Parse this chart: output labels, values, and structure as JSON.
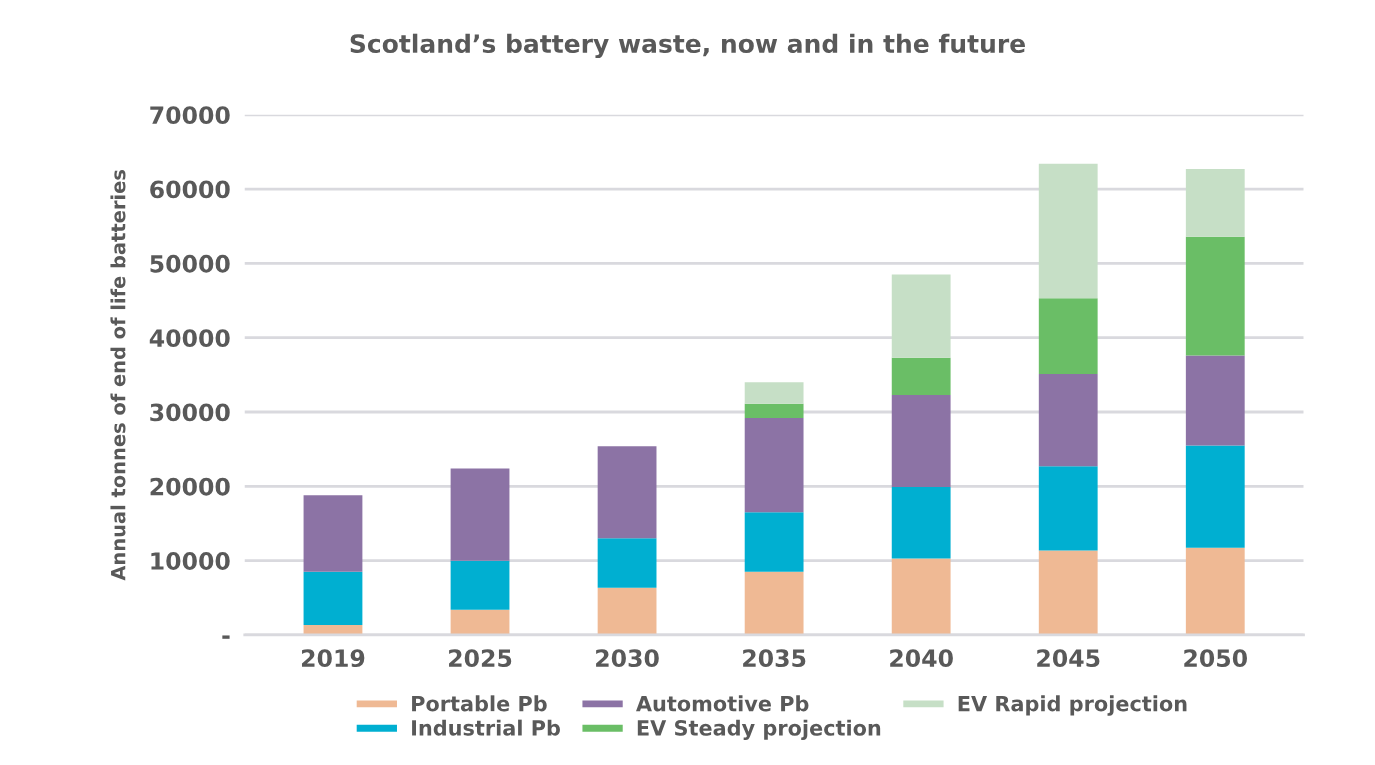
{
  "chart_data": {
    "type": "bar",
    "title": "Scotland’s battery waste, now and in the future",
    "ylabel": "Annual tonnes of end of life batteries",
    "categories": [
      "2019",
      "2025",
      "2030",
      "2035",
      "2040",
      "2045",
      "2050"
    ],
    "stacked": true,
    "series": [
      {
        "name": "Portable Pb",
        "color": "#efb994",
        "values": [
          1350,
          3400,
          6350,
          8500,
          10300,
          11350,
          11750
        ]
      },
      {
        "name": "Industrial Pb",
        "color": "#00afd1",
        "values": [
          7150,
          6600,
          6650,
          8000,
          9600,
          11350,
          13750
        ]
      },
      {
        "name": "Automotive Pb",
        "color": "#8c73a5",
        "values": [
          10300,
          12400,
          12400,
          12700,
          12400,
          12400,
          12100
        ]
      },
      {
        "name": "EV Steady projection",
        "color": "#6abe66",
        "values": [
          null,
          null,
          null,
          1900,
          5000,
          10200,
          16000
        ]
      },
      {
        "name": "EV Rapid projection",
        "color": "#c6dfc6",
        "values": [
          null,
          null,
          null,
          2900,
          11200,
          18100,
          9100
        ]
      }
    ],
    "ylim": [
      0,
      70000
    ],
    "yticks": [
      {
        "value": 0,
        "label": "-"
      },
      10000,
      20000,
      30000,
      40000,
      50000,
      60000,
      70000
    ],
    "grid": "y",
    "legend": "bottom"
  }
}
